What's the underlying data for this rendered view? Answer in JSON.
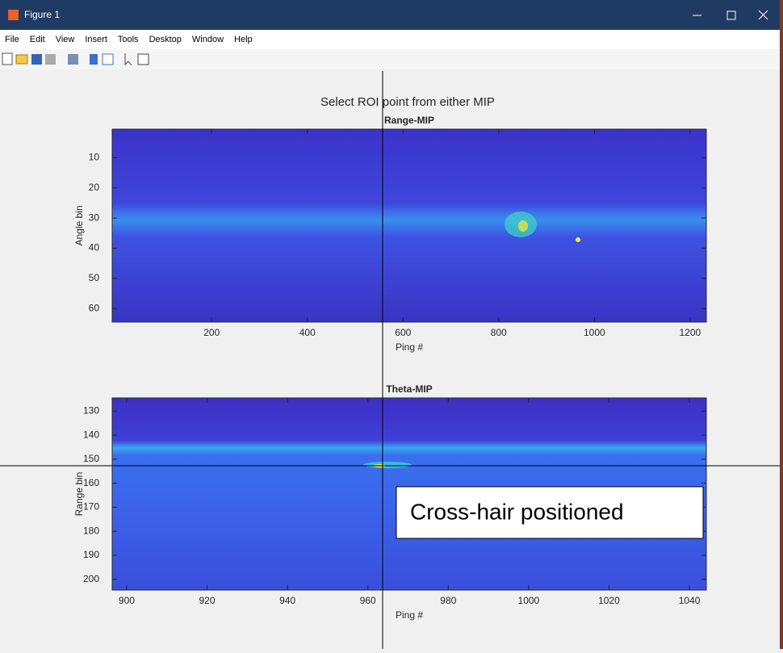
{
  "window": {
    "title": "Figure 1"
  },
  "menu": [
    "File",
    "Edit",
    "View",
    "Insert",
    "Tools",
    "Desktop",
    "Window",
    "Help"
  ],
  "suptitle": "Select ROI point from either MIP",
  "annotation": "Cross-hair positioned",
  "chart_data": [
    {
      "type": "heatmap",
      "title": "Range-MIP",
      "xlabel": "Ping #",
      "ylabel": "Angle bin",
      "xlim": [
        -8,
        1234
      ],
      "xticks": [
        200,
        400,
        600,
        800,
        1000,
        1200
      ],
      "ylim": [
        0.5,
        64.5
      ],
      "yticks": [
        10,
        20,
        30,
        40,
        50,
        60
      ],
      "y_reversed": true
    },
    {
      "type": "heatmap",
      "title": "Theta-MIP",
      "xlabel": "Ping #",
      "ylabel": "Range bin",
      "xlim": [
        896.4,
        1044.2
      ],
      "xticks": [
        900,
        920,
        940,
        960,
        980,
        1000,
        1020,
        1040
      ],
      "ylim": [
        124.5,
        204.5
      ],
      "yticks": [
        130,
        140,
        150,
        160,
        170,
        180,
        190,
        200
      ],
      "y_reversed": true
    }
  ]
}
